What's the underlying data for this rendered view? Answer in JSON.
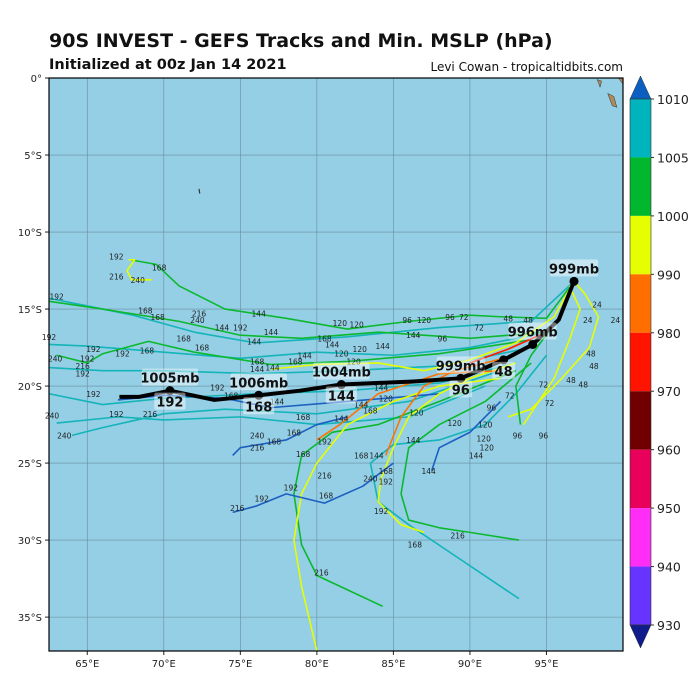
{
  "header": {
    "title": "90S INVEST - GEFS Tracks and Min. MSLP (hPa)",
    "subtitle": "Initialized at 00z Jan 14 2021",
    "credit": "Levi Cowan - tropicaltidbits.com"
  },
  "map": {
    "extent": {
      "lon": [
        62.5,
        100
      ],
      "lat": [
        -37.2,
        0
      ]
    },
    "ocean_color": "#94cfe6",
    "land_color": "#b0895a",
    "lon_ticks": [
      {
        "v": 65,
        "label": "65°E"
      },
      {
        "v": 70,
        "label": "70°E"
      },
      {
        "v": 75,
        "label": "75°E"
      },
      {
        "v": 80,
        "label": "80°E"
      },
      {
        "v": 85,
        "label": "85°E"
      },
      {
        "v": 90,
        "label": "90°E"
      },
      {
        "v": 95,
        "label": "95°E"
      }
    ],
    "lat_ticks": [
      {
        "v": 0,
        "label": "0°"
      },
      {
        "v": -5,
        "label": "5°S"
      },
      {
        "v": -10,
        "label": "10°S"
      },
      {
        "v": -15,
        "label": "15°S"
      },
      {
        "v": -20,
        "label": "20°S"
      },
      {
        "v": -25,
        "label": "25°S"
      },
      {
        "v": -30,
        "label": "30°S"
      },
      {
        "v": -35,
        "label": "35°S"
      }
    ]
  },
  "colors": {
    "teal": "#14b4b8",
    "green": "#0cb82e",
    "yellow": "#e6ff00",
    "orange": "#ff7300",
    "red": "#ff1a00",
    "blue": "#1c5fc0",
    "mean": "#000000"
  },
  "colorbar": {
    "unit": "hPa",
    "levels": [
      {
        "label": "1010",
        "color": "#0a5fc0"
      },
      {
        "label": "1005",
        "color": "#00b4bd"
      },
      {
        "label": "1000",
        "color": "#00b72d"
      },
      {
        "label": "990",
        "color": "#e6ff00"
      },
      {
        "label": "980",
        "color": "#ff6f00"
      },
      {
        "label": "970",
        "color": "#ff1400"
      },
      {
        "label": "960",
        "color": "#700000"
      },
      {
        "label": "950",
        "color": "#e8005a"
      },
      {
        "label": "940",
        "color": "#ff2df5"
      },
      {
        "label": "930",
        "color": "#6633ff"
      }
    ],
    "under_color": "#101c8c"
  },
  "tracks": [
    {
      "c": "green",
      "pts": [
        [
          96.8,
          -13.2
        ],
        [
          95,
          -15.6
        ],
        [
          92,
          -15.5
        ],
        [
          90,
          -15.4
        ],
        [
          86,
          -15.8
        ],
        [
          82,
          -16.3
        ],
        [
          78,
          -15.6
        ],
        [
          74,
          -15.0
        ],
        [
          71,
          -13.5
        ],
        [
          69.5,
          -12.1
        ],
        [
          67.8,
          -11.8
        ]
      ]
    },
    {
      "c": "teal",
      "pts": [
        [
          96.8,
          -13.2
        ],
        [
          94,
          -15.8
        ],
        [
          88,
          -16.2
        ],
        [
          82,
          -16.8
        ],
        [
          76,
          -17.2
        ],
        [
          72,
          -16.5
        ],
        [
          68,
          -15.4
        ],
        [
          65,
          -14.8
        ],
        [
          62.5,
          -14.3
        ]
      ]
    },
    {
      "c": "green",
      "pts": [
        [
          95,
          -16.5
        ],
        [
          90,
          -16.9
        ],
        [
          84,
          -16.5
        ],
        [
          79,
          -16.9
        ],
        [
          75,
          -16.7
        ],
        [
          71,
          -15.8
        ],
        [
          66,
          -15.0
        ],
        [
          62.5,
          -14.5
        ]
      ]
    },
    {
      "c": "teal",
      "pts": [
        [
          95,
          -16.5
        ],
        [
          90,
          -17.5
        ],
        [
          85,
          -18.0
        ],
        [
          80,
          -17.8
        ],
        [
          75,
          -18.2
        ],
        [
          70,
          -17.8
        ],
        [
          65,
          -17.4
        ],
        [
          62.5,
          -17.3
        ]
      ]
    },
    {
      "c": "green",
      "pts": [
        [
          94,
          -17
        ],
        [
          88,
          -17.9
        ],
        [
          82,
          -18.4
        ],
        [
          77,
          -18.6
        ],
        [
          72,
          -17.8
        ],
        [
          69,
          -17.1
        ],
        [
          66,
          -17.9
        ],
        [
          65,
          -18.5
        ],
        [
          63,
          -18.0
        ]
      ]
    },
    {
      "c": "teal",
      "pts": [
        [
          94,
          -17.5
        ],
        [
          88,
          -18.7
        ],
        [
          82,
          -19.0
        ],
        [
          76,
          -19.2
        ],
        [
          70,
          -19.0
        ],
        [
          66,
          -19.0
        ],
        [
          62.5,
          -18.8
        ]
      ]
    },
    {
      "c": "teal",
      "pts": [
        [
          93,
          -18.5
        ],
        [
          88,
          -19.8
        ],
        [
          82,
          -20.3
        ],
        [
          76,
          -20.5
        ],
        [
          70,
          -20.8
        ],
        [
          66,
          -21.2
        ],
        [
          62.5,
          -20.5
        ]
      ]
    },
    {
      "c": "teal",
      "pts": [
        [
          92,
          -19
        ],
        [
          86,
          -21
        ],
        [
          80,
          -21.8
        ],
        [
          74,
          -21.5
        ],
        [
          70,
          -21.8
        ],
        [
          66,
          -22.7
        ],
        [
          64,
          -23.2
        ]
      ]
    },
    {
      "c": "teal",
      "pts": [
        [
          91,
          -20
        ],
        [
          86,
          -22
        ],
        [
          80,
          -22.5
        ],
        [
          75,
          -22
        ],
        [
          70,
          -22.2
        ],
        [
          67,
          -22
        ],
        [
          63,
          -22.4
        ]
      ]
    },
    {
      "c": "blue",
      "pts": [
        [
          88,
          -20.5
        ],
        [
          82,
          -21.0
        ],
        [
          77,
          -21.4
        ],
        [
          74,
          -20.8
        ],
        [
          70,
          -20.6
        ],
        [
          67,
          -20.9
        ]
      ]
    },
    {
      "c": "green",
      "pts": [
        [
          93,
          -19
        ],
        [
          88,
          -21
        ],
        [
          84,
          -22.5
        ],
        [
          81,
          -23
        ],
        [
          79,
          -24.5
        ],
        [
          78.5,
          -27
        ],
        [
          79,
          -30.3
        ],
        [
          80,
          -32.3
        ],
        [
          84.3,
          -34.3
        ]
      ]
    },
    {
      "c": "teal",
      "pts": [
        [
          95,
          -18
        ],
        [
          93,
          -20.5
        ],
        [
          91,
          -22.5
        ],
        [
          88,
          -23.5
        ],
        [
          85,
          -23.8
        ],
        [
          83.5,
          -25
        ],
        [
          84,
          -27.5
        ],
        [
          86,
          -29
        ],
        [
          89,
          -31
        ],
        [
          93.2,
          -33.8
        ]
      ]
    },
    {
      "c": "green",
      "pts": [
        [
          94,
          -18.5
        ],
        [
          91,
          -21
        ],
        [
          88,
          -22.5
        ],
        [
          86,
          -24
        ],
        [
          85.5,
          -27
        ],
        [
          86,
          -28.7
        ],
        [
          88,
          -29.2
        ],
        [
          90,
          -29.5
        ],
        [
          93.2,
          -30
        ]
      ]
    },
    {
      "c": "yellow",
      "pts": [
        [
          93,
          -18.5
        ],
        [
          90,
          -19.5
        ],
        [
          88,
          -20.5
        ],
        [
          86,
          -22
        ],
        [
          85,
          -24
        ],
        [
          84.2,
          -26
        ],
        [
          84,
          -27.5
        ],
        [
          85.5,
          -29
        ],
        [
          87,
          -29.5
        ]
      ]
    },
    {
      "c": "yellow",
      "pts": [
        [
          92,
          -19.5
        ],
        [
          88,
          -20
        ],
        [
          85,
          -21
        ],
        [
          82,
          -22.5
        ],
        [
          80,
          -25
        ],
        [
          79,
          -27
        ],
        [
          78.5,
          -30
        ],
        [
          79,
          -33
        ],
        [
          80,
          -37.2
        ]
      ]
    },
    {
      "c": "orange",
      "pts": [
        [
          93,
          -18
        ],
        [
          89,
          -19
        ],
        [
          87,
          -20
        ],
        [
          85.5,
          -22
        ],
        [
          84.5,
          -24.5
        ]
      ]
    },
    {
      "c": "orange",
      "pts": [
        [
          92,
          -19
        ],
        [
          88,
          -19.2
        ],
        [
          84,
          -20.5
        ],
        [
          81.5,
          -22.5
        ],
        [
          80,
          -23.5
        ]
      ]
    },
    {
      "c": "red",
      "pts": [
        [
          95,
          -16.5
        ],
        [
          92.5,
          -17.6
        ],
        [
          90,
          -18.5
        ]
      ]
    },
    {
      "c": "blue",
      "pts": [
        [
          92,
          -21
        ],
        [
          90,
          -23
        ],
        [
          88,
          -24
        ],
        [
          87.5,
          -25.5
        ]
      ]
    },
    {
      "c": "blue",
      "pts": [
        [
          82,
          -22
        ],
        [
          80,
          -22.5
        ],
        [
          78,
          -23.5
        ],
        [
          75,
          -24
        ],
        [
          74.5,
          -24.5
        ]
      ]
    },
    {
      "c": "blue",
      "pts": [
        [
          85,
          -25
        ],
        [
          83,
          -26.5
        ],
        [
          80.5,
          -27.6
        ],
        [
          78,
          -27
        ],
        [
          76,
          -27.8
        ],
        [
          74.5,
          -28.2
        ]
      ]
    },
    {
      "c": "yellow",
      "pts": [
        [
          67.7,
          -11.8
        ],
        [
          68.1,
          -11.8
        ],
        [
          67.6,
          -12.5
        ],
        [
          67.9,
          -13.1
        ],
        [
          69.2,
          -13.1
        ]
      ]
    },
    {
      "c": "yellow",
      "pts": [
        [
          96.8,
          -13.2
        ],
        [
          97.5,
          -14
        ],
        [
          98.4,
          -15.5
        ],
        [
          97.8,
          -17.5
        ],
        [
          96,
          -19.5
        ],
        [
          94,
          -21.5
        ],
        [
          92.5,
          -22
        ]
      ]
    },
    {
      "c": "yellow",
      "pts": [
        [
          96.5,
          -13.5
        ],
        [
          97.2,
          -15
        ],
        [
          96.5,
          -17
        ],
        [
          95.5,
          -19.5
        ],
        [
          93.5,
          -22.5
        ]
      ]
    },
    {
      "c": "yellow",
      "pts": [
        [
          96.8,
          -13.2
        ],
        [
          95.5,
          -15.5
        ],
        [
          93,
          -17.2
        ],
        [
          90,
          -18.3
        ],
        [
          87,
          -19
        ],
        [
          84,
          -18.5
        ],
        [
          80,
          -18.6
        ],
        [
          77,
          -18.9
        ]
      ]
    },
    {
      "c": "green",
      "pts": [
        [
          95.5,
          -16
        ],
        [
          94,
          -18
        ],
        [
          93,
          -20
        ],
        [
          93.3,
          -22.5
        ]
      ]
    }
  ],
  "hour_labels": [
    [
      "192",
      66.9,
      -11.6
    ],
    [
      "216",
      66.9,
      -12.9
    ],
    [
      "240",
      68.3,
      -13.1
    ],
    [
      "168",
      69.7,
      -12.3
    ],
    [
      "192",
      63.0,
      -14.2
    ],
    [
      "168",
      68.8,
      -15.1
    ],
    [
      "168",
      69.6,
      -15.5
    ],
    [
      "216",
      72.3,
      -15.3
    ],
    [
      "240",
      72.2,
      -15.7
    ],
    [
      "144",
      73.8,
      -16.2
    ],
    [
      "192",
      75.0,
      -16.2
    ],
    [
      "144",
      76.2,
      -15.3
    ],
    [
      "144",
      77.0,
      -16.5
    ],
    [
      "192",
      62.5,
      -16.8
    ],
    [
      "192",
      65.4,
      -17.6
    ],
    [
      "192",
      67.3,
      -17.9
    ],
    [
      "168",
      68.9,
      -17.7
    ],
    [
      "168",
      71.3,
      -16.9
    ],
    [
      "168",
      72.5,
      -17.5
    ],
    [
      "144",
      75.9,
      -17.1
    ],
    [
      "240",
      62.9,
      -18.2
    ],
    [
      "192",
      65.0,
      -18.2
    ],
    [
      "216",
      64.7,
      -18.7
    ],
    [
      "192",
      64.7,
      -19.2
    ],
    [
      "192",
      65.4,
      -20.5
    ],
    [
      "240",
      62.7,
      -21.9
    ],
    [
      "192",
      66.9,
      -21.8
    ],
    [
      "216",
      69.1,
      -21.8
    ],
    [
      "240",
      63.5,
      -23.2
    ],
    [
      "192",
      73.5,
      -20.1
    ],
    [
      "168",
      74.4,
      -20.6
    ],
    [
      "144",
      77.4,
      -21.0
    ],
    [
      "168",
      76.1,
      -18.4
    ],
    [
      "144",
      76.1,
      -18.9
    ],
    [
      "144",
      77.1,
      -18.8
    ],
    [
      "168",
      78.6,
      -18.4
    ],
    [
      "144",
      79.2,
      -18.0
    ],
    [
      "120",
      81.5,
      -15.9
    ],
    [
      "120",
      82.6,
      -16.0
    ],
    [
      "168",
      80.5,
      -16.9
    ],
    [
      "144",
      81.0,
      -17.3
    ],
    [
      "120",
      81.6,
      -17.9
    ],
    [
      "120",
      82.8,
      -17.6
    ],
    [
      "120",
      82.4,
      -18.4
    ],
    [
      "144",
      84.3,
      -17.4
    ],
    [
      "144",
      86.3,
      -16.7
    ],
    [
      "120",
      87.0,
      -15.7
    ],
    [
      "96",
      85.9,
      -15.7
    ],
    [
      "96",
      88.7,
      -15.5
    ],
    [
      "72",
      89.6,
      -15.5
    ],
    [
      "48",
      92.5,
      -15.6
    ],
    [
      "48",
      93.8,
      -15.7
    ],
    [
      "72",
      90.6,
      -16.2
    ],
    [
      "96",
      88.2,
      -16.9
    ],
    [
      "120",
      84.5,
      -20.8
    ],
    [
      "144",
      84.2,
      -20.1
    ],
    [
      "144",
      81.6,
      -22.1
    ],
    [
      "144",
      82.9,
      -21.2
    ],
    [
      "168",
      83.5,
      -21.6
    ],
    [
      "120",
      86.5,
      -21.7
    ],
    [
      "120",
      89.0,
      -22.4
    ],
    [
      "120",
      91.0,
      -22.5
    ],
    [
      "120",
      91.1,
      -24.0
    ],
    [
      "96",
      93.1,
      -23.2
    ],
    [
      "72",
      95.2,
      -21.1
    ],
    [
      "72",
      94.8,
      -19.9
    ],
    [
      "48",
      97.4,
      -19.9
    ],
    [
      "48",
      96.6,
      -19.6
    ],
    [
      "48",
      98.1,
      -18.7
    ],
    [
      "48",
      97.9,
      -17.9
    ],
    [
      "24",
      97.7,
      -15.7
    ],
    [
      "24",
      98.3,
      -14.7
    ],
    [
      "24",
      99.5,
      -15.7
    ],
    [
      "96",
      91.4,
      -21.4
    ],
    [
      "72",
      92.6,
      -20.6
    ],
    [
      "168",
      79.1,
      -22.0
    ],
    [
      "168",
      78.5,
      -23.0
    ],
    [
      "168",
      79.1,
      -24.4
    ],
    [
      "192",
      80.5,
      -23.6
    ],
    [
      "240",
      76.1,
      -23.2
    ],
    [
      "216",
      76.1,
      -24.0
    ],
    [
      "168",
      77.2,
      -23.6
    ],
    [
      "192",
      78.3,
      -26.6
    ],
    [
      "216",
      80.5,
      -25.8
    ],
    [
      "168",
      80.6,
      -27.1
    ],
    [
      "192",
      76.4,
      -27.3
    ],
    [
      "216",
      74.8,
      -27.9
    ],
    [
      "168",
      82.9,
      -24.5
    ],
    [
      "144",
      83.9,
      -24.5
    ],
    [
      "240",
      83.5,
      -26.0
    ],
    [
      "168",
      84.5,
      -25.5
    ],
    [
      "192",
      84.5,
      -26.2
    ],
    [
      "192",
      84.2,
      -28.1
    ],
    [
      "144",
      86.3,
      -23.5
    ],
    [
      "144",
      87.3,
      -25.5
    ],
    [
      "144",
      90.4,
      -24.5
    ],
    [
      "120",
      90.9,
      -23.4
    ],
    [
      "96",
      94.8,
      -23.2
    ],
    [
      "216",
      89.2,
      -29.7
    ],
    [
      "168",
      86.4,
      -30.3
    ],
    [
      "216",
      80.3,
      -32.1
    ]
  ],
  "mean_track": {
    "pts": [
      [
        96.8,
        -13.2
      ],
      [
        95.8,
        -15.7
      ],
      [
        94.1,
        -17.3
      ],
      [
        92.2,
        -18.3
      ],
      [
        89.4,
        -19.5
      ],
      [
        86.3,
        -19.7
      ],
      [
        81.6,
        -19.9
      ],
      [
        78.9,
        -20.3
      ],
      [
        76.2,
        -20.6
      ],
      [
        73.3,
        -20.9
      ],
      [
        70.4,
        -20.3
      ],
      [
        68.4,
        -20.7
      ],
      [
        67.1,
        -20.7
      ]
    ],
    "markers": [
      {
        "lon": 96.8,
        "lat": -13.2,
        "pressure": "999mb",
        "hour": ""
      },
      {
        "lon": 94.1,
        "lat": -17.3,
        "pressure": "996mb",
        "hour": ""
      },
      {
        "lon": 92.2,
        "lat": -18.3,
        "pressure": "",
        "hour": "48"
      },
      {
        "lon": 89.4,
        "lat": -19.5,
        "pressure": "999mb",
        "hour": "96"
      },
      {
        "lon": 81.6,
        "lat": -19.9,
        "pressure": "1004mb",
        "hour": "144"
      },
      {
        "lon": 76.2,
        "lat": -20.6,
        "pressure": "1006mb",
        "hour": "168"
      },
      {
        "lon": 70.4,
        "lat": -20.3,
        "pressure": "1005mb",
        "hour": "192"
      }
    ]
  }
}
